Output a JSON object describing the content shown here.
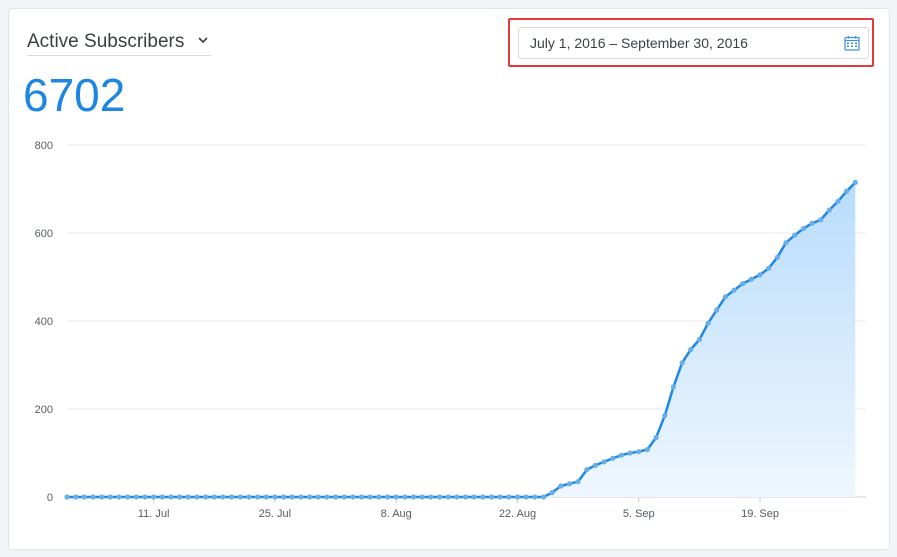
{
  "header": {
    "metric_label": "Active Subscribers",
    "big_number": "6702",
    "date_range": "July 1, 2016 – September 30, 2016"
  },
  "icons": {
    "metric_dropdown": "chevron-down-icon",
    "date_picker": "calendar-icon"
  },
  "colors": {
    "accent": "#1d86e2",
    "line": "#1e88e5",
    "marker": "#6aaee8",
    "highlight": "#e0393e"
  },
  "chart_data": {
    "type": "area",
    "title": "",
    "xlabel": "",
    "ylabel": "",
    "ylim": [
      0,
      800
    ],
    "yticks": [
      0,
      200,
      400,
      600,
      800
    ],
    "xlim": [
      0,
      92
    ],
    "xticks": [
      {
        "day": 10,
        "label": "11. Jul"
      },
      {
        "day": 24,
        "label": "25. Jul"
      },
      {
        "day": 38,
        "label": "8. Aug"
      },
      {
        "day": 52,
        "label": "22. Aug"
      },
      {
        "day": 66,
        "label": "5. Sep"
      },
      {
        "day": 80,
        "label": "19. Sep"
      }
    ],
    "grid": true,
    "series": [
      {
        "name": "Active Subscribers",
        "x": [
          0,
          1,
          2,
          3,
          4,
          5,
          6,
          7,
          8,
          9,
          10,
          11,
          12,
          13,
          14,
          15,
          16,
          17,
          18,
          19,
          20,
          21,
          22,
          23,
          24,
          25,
          26,
          27,
          28,
          29,
          30,
          31,
          32,
          33,
          34,
          35,
          36,
          37,
          38,
          39,
          40,
          41,
          42,
          43,
          44,
          45,
          46,
          47,
          48,
          49,
          50,
          51,
          52,
          53,
          54,
          55,
          56,
          57,
          58,
          59,
          60,
          61,
          62,
          63,
          64,
          65,
          66,
          67,
          68,
          69,
          70,
          71,
          72,
          73,
          74,
          75,
          76,
          77,
          78,
          79,
          80,
          81,
          82,
          83,
          84,
          85,
          86,
          87,
          88,
          89,
          90,
          91
        ],
        "values": [
          0,
          0,
          0,
          0,
          0,
          0,
          0,
          0,
          0,
          0,
          0,
          0,
          0,
          0,
          0,
          0,
          0,
          0,
          0,
          0,
          0,
          0,
          0,
          0,
          0,
          0,
          0,
          0,
          0,
          0,
          0,
          0,
          0,
          0,
          0,
          0,
          0,
          0,
          0,
          0,
          0,
          0,
          0,
          0,
          0,
          0,
          0,
          0,
          0,
          0,
          0,
          0,
          0,
          0,
          0,
          0,
          10,
          25,
          30,
          35,
          62,
          72,
          80,
          88,
          95,
          100,
          103,
          108,
          135,
          185,
          250,
          305,
          335,
          358,
          395,
          425,
          455,
          470,
          485,
          495,
          505,
          520,
          545,
          578,
          595,
          610,
          622,
          630,
          652,
          672,
          695,
          715
        ]
      }
    ]
  }
}
